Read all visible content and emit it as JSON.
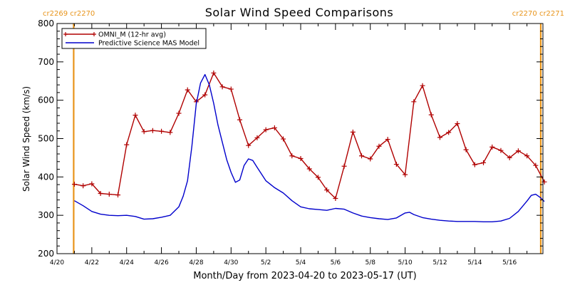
{
  "chart_data": {
    "type": "line",
    "title": "Solar Wind Speed Comparisons",
    "xlabel": "Month/Day from 2023-04-20 to 2023-05-17 (UT)",
    "ylabel": "Solar Wind Speed (km/s)",
    "xlim": [
      "2023-04-20",
      "2023-05-17T22:00"
    ],
    "ylim": [
      200,
      800
    ],
    "yticks": [
      200,
      300,
      400,
      500,
      600,
      700,
      800
    ],
    "xticks": [
      {
        "date": "2023-04-20",
        "label": "4/20"
      },
      {
        "date": "2023-04-22",
        "label": "4/22"
      },
      {
        "date": "2023-04-24",
        "label": "4/24"
      },
      {
        "date": "2023-04-26",
        "label": "4/26"
      },
      {
        "date": "2023-04-28",
        "label": "4/28"
      },
      {
        "date": "2023-04-30",
        "label": "4/30"
      },
      {
        "date": "2023-05-02",
        "label": "5/2"
      },
      {
        "date": "2023-05-04",
        "label": "5/4"
      },
      {
        "date": "2023-05-06",
        "label": "5/6"
      },
      {
        "date": "2023-05-08",
        "label": "5/8"
      },
      {
        "date": "2023-05-10",
        "label": "5/10"
      },
      {
        "date": "2023-05-12",
        "label": "5/12"
      },
      {
        "date": "2023-05-14",
        "label": "5/14"
      },
      {
        "date": "2023-05-16",
        "label": "5/16"
      }
    ],
    "legend_position": "top-left",
    "carrington_markers": [
      {
        "date": "2023-04-20T23:00",
        "label": "cr2269 cr2270",
        "label_side": "left"
      },
      {
        "date": "2023-05-17T19:00",
        "label": "cr2270 cr2271",
        "label_side": "right"
      }
    ],
    "series": [
      {
        "name": "OMNI_M (12-hr avg)",
        "color": "#b00000",
        "marker": "plus",
        "points": [
          [
            "2023-04-21T00:00",
            381
          ],
          [
            "2023-04-21T12:00",
            377
          ],
          [
            "2023-04-22T00:00",
            382
          ],
          [
            "2023-04-22T12:00",
            357
          ],
          [
            "2023-04-23T00:00",
            355
          ],
          [
            "2023-04-23T12:00",
            353
          ],
          [
            "2023-04-24T00:00",
            484
          ],
          [
            "2023-04-24T12:00",
            561
          ],
          [
            "2023-04-25T00:00",
            518
          ],
          [
            "2023-04-25T12:00",
            521
          ],
          [
            "2023-04-26T00:00",
            519
          ],
          [
            "2023-04-26T12:00",
            516
          ],
          [
            "2023-04-27T00:00",
            566
          ],
          [
            "2023-04-27T12:00",
            627
          ],
          [
            "2023-04-28T00:00",
            596
          ],
          [
            "2023-04-28T12:00",
            614
          ],
          [
            "2023-04-29T00:00",
            671
          ],
          [
            "2023-04-29T12:00",
            635
          ],
          [
            "2023-04-30T00:00",
            629
          ],
          [
            "2023-04-30T12:00",
            549
          ],
          [
            "2023-05-01T00:00",
            482
          ],
          [
            "2023-05-01T12:00",
            502
          ],
          [
            "2023-05-02T00:00",
            523
          ],
          [
            "2023-05-02T12:00",
            528
          ],
          [
            "2023-05-03T00:00",
            499
          ],
          [
            "2023-05-03T12:00",
            455
          ],
          [
            "2023-05-04T00:00",
            448
          ],
          [
            "2023-05-04T12:00",
            421
          ],
          [
            "2023-05-05T00:00",
            399
          ],
          [
            "2023-05-05T12:00",
            366
          ],
          [
            "2023-05-06T00:00",
            344
          ],
          [
            "2023-05-06T12:00",
            428
          ],
          [
            "2023-05-07T00:00",
            517
          ],
          [
            "2023-05-07T12:00",
            455
          ],
          [
            "2023-05-08T00:00",
            447
          ],
          [
            "2023-05-08T12:00",
            480
          ],
          [
            "2023-05-09T00:00",
            498
          ],
          [
            "2023-05-09T12:00",
            433
          ],
          [
            "2023-05-10T00:00",
            406
          ],
          [
            "2023-05-10T12:00",
            596
          ],
          [
            "2023-05-11T00:00",
            638
          ],
          [
            "2023-05-11T12:00",
            562
          ],
          [
            "2023-05-12T00:00",
            503
          ],
          [
            "2023-05-12T12:00",
            516
          ],
          [
            "2023-05-13T00:00",
            539
          ],
          [
            "2023-05-13T12:00",
            471
          ],
          [
            "2023-05-14T00:00",
            432
          ],
          [
            "2023-05-14T12:00",
            437
          ],
          [
            "2023-05-15T00:00",
            478
          ],
          [
            "2023-05-15T12:00",
            469
          ],
          [
            "2023-05-16T00:00",
            450
          ],
          [
            "2023-05-16T12:00",
            468
          ],
          [
            "2023-05-17T00:00",
            455
          ],
          [
            "2023-05-17T12:00",
            430
          ],
          [
            "2023-05-18T00:00",
            387
          ]
        ]
      },
      {
        "name": "Predictive Science MAS Model",
        "color": "#0000cc",
        "marker": "none",
        "points": [
          [
            "2023-04-21T00:00",
            338
          ],
          [
            "2023-04-21T12:00",
            325
          ],
          [
            "2023-04-22T00:00",
            310
          ],
          [
            "2023-04-22T12:00",
            303
          ],
          [
            "2023-04-23T00:00",
            300
          ],
          [
            "2023-04-23T12:00",
            299
          ],
          [
            "2023-04-24T00:00",
            300
          ],
          [
            "2023-04-24T12:00",
            297
          ],
          [
            "2023-04-25T00:00",
            290
          ],
          [
            "2023-04-25T12:00",
            291
          ],
          [
            "2023-04-26T00:00",
            295
          ],
          [
            "2023-04-26T12:00",
            300
          ],
          [
            "2023-04-27T00:00",
            322
          ],
          [
            "2023-04-27T06:00",
            350
          ],
          [
            "2023-04-27T12:00",
            390
          ],
          [
            "2023-04-27T18:00",
            480
          ],
          [
            "2023-04-28T00:00",
            590
          ],
          [
            "2023-04-28T06:00",
            645
          ],
          [
            "2023-04-28T12:00",
            667
          ],
          [
            "2023-04-28T18:00",
            640
          ],
          [
            "2023-04-29T00:00",
            592
          ],
          [
            "2023-04-29T06:00",
            535
          ],
          [
            "2023-04-29T12:00",
            490
          ],
          [
            "2023-04-29T18:00",
            445
          ],
          [
            "2023-04-30T00:00",
            412
          ],
          [
            "2023-04-30T06:00",
            386
          ],
          [
            "2023-04-30T12:00",
            392
          ],
          [
            "2023-04-30T18:00",
            430
          ],
          [
            "2023-05-01T00:00",
            447
          ],
          [
            "2023-05-01T06:00",
            443
          ],
          [
            "2023-05-01T12:00",
            425
          ],
          [
            "2023-05-02T00:00",
            390
          ],
          [
            "2023-05-02T12:00",
            372
          ],
          [
            "2023-05-03T00:00",
            358
          ],
          [
            "2023-05-03T12:00",
            338
          ],
          [
            "2023-05-04T00:00",
            322
          ],
          [
            "2023-05-04T12:00",
            317
          ],
          [
            "2023-05-05T00:00",
            315
          ],
          [
            "2023-05-05T12:00",
            313
          ],
          [
            "2023-05-06T00:00",
            318
          ],
          [
            "2023-05-06T12:00",
            316
          ],
          [
            "2023-05-07T00:00",
            306
          ],
          [
            "2023-05-07T12:00",
            298
          ],
          [
            "2023-05-08T00:00",
            294
          ],
          [
            "2023-05-08T12:00",
            291
          ],
          [
            "2023-05-09T00:00",
            289
          ],
          [
            "2023-05-09T12:00",
            293
          ],
          [
            "2023-05-10T00:00",
            306
          ],
          [
            "2023-05-10T06:00",
            308
          ],
          [
            "2023-05-10T12:00",
            302
          ],
          [
            "2023-05-11T00:00",
            294
          ],
          [
            "2023-05-11T12:00",
            290
          ],
          [
            "2023-05-12T00:00",
            287
          ],
          [
            "2023-05-12T12:00",
            285
          ],
          [
            "2023-05-13T00:00",
            284
          ],
          [
            "2023-05-13T12:00",
            284
          ],
          [
            "2023-05-14T00:00",
            284
          ],
          [
            "2023-05-14T12:00",
            283
          ],
          [
            "2023-05-15T00:00",
            283
          ],
          [
            "2023-05-15T12:00",
            285
          ],
          [
            "2023-05-16T00:00",
            292
          ],
          [
            "2023-05-16T12:00",
            310
          ],
          [
            "2023-05-17T00:00",
            337
          ],
          [
            "2023-05-17T06:00",
            352
          ],
          [
            "2023-05-17T12:00",
            355
          ],
          [
            "2023-05-17T18:00",
            347
          ],
          [
            "2023-05-18T00:00",
            336
          ]
        ]
      }
    ]
  }
}
